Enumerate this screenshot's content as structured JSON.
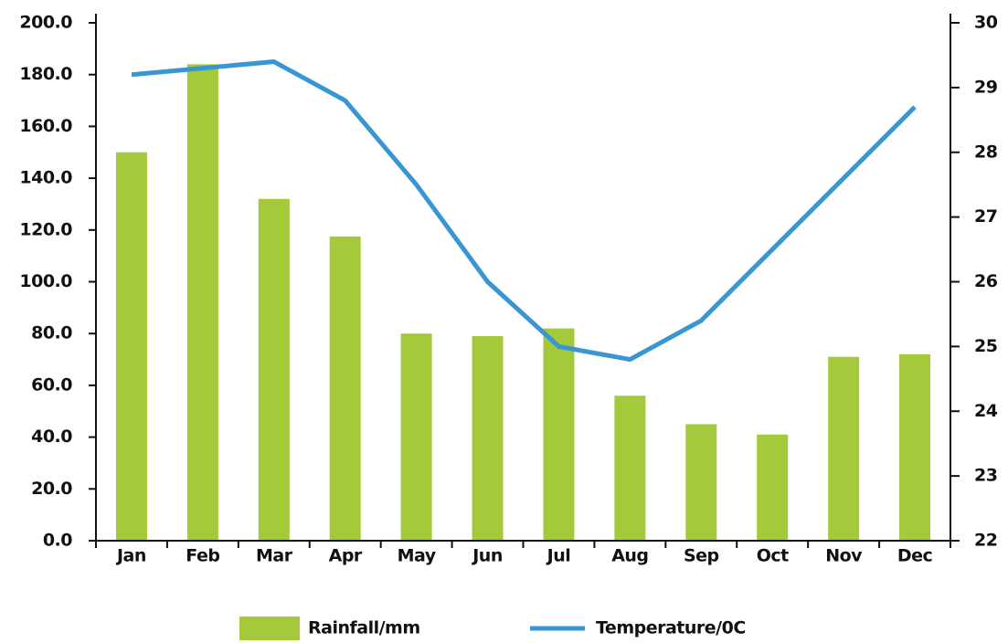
{
  "chart_data": {
    "type": "combo",
    "categories": [
      "Jan",
      "Feb",
      "Mar",
      "Apr",
      "May",
      "Jun",
      "Jul",
      "Aug",
      "Sep",
      "Oct",
      "Nov",
      "Dec"
    ],
    "series": [
      {
        "name": "Rainfall/mm",
        "type": "bar",
        "color": "#a4c93a",
        "values": [
          150,
          184,
          132,
          117.5,
          80,
          79,
          82,
          56,
          45,
          41,
          71,
          72
        ]
      },
      {
        "name": "Temperature/0C",
        "type": "line",
        "axis": "y2",
        "color": "#3a96d3",
        "values": [
          29.2,
          29.3,
          29.4,
          28.8,
          27.5,
          26.0,
          25.0,
          24.8,
          25.4,
          26.5,
          27.6,
          28.7
        ]
      }
    ],
    "ylim": [
      0,
      200
    ],
    "yticks": [
      {
        "value": 0,
        "label": "0.0"
      },
      {
        "value": 20,
        "label": "20.0"
      },
      {
        "value": 40,
        "label": "40.0"
      },
      {
        "value": 60,
        "label": "60.0"
      },
      {
        "value": 80,
        "label": "80.0"
      },
      {
        "value": 100,
        "label": "100.0"
      },
      {
        "value": 120,
        "label": "120.0"
      },
      {
        "value": 140,
        "label": "140.0"
      },
      {
        "value": 160,
        "label": "160.0"
      },
      {
        "value": 180,
        "label": "180.0"
      },
      {
        "value": 200,
        "label": "200.0"
      }
    ],
    "y2lim": [
      22,
      30
    ],
    "y2ticks": [
      22,
      23,
      24,
      25,
      26,
      27,
      28,
      29,
      30
    ],
    "legend": "bottom"
  }
}
